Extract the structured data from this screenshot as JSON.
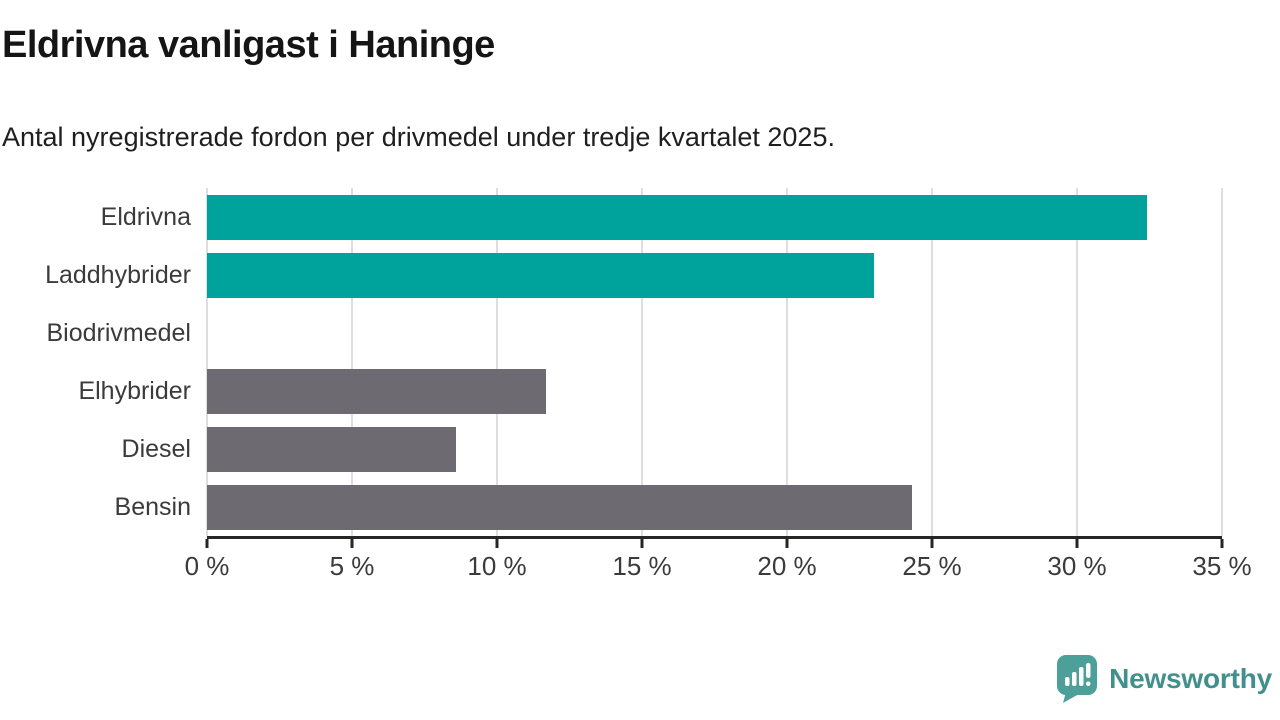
{
  "header": {
    "title": "Eldrivna vanligast i Haninge",
    "subtitle": "Antal nyregistrerade fordon per drivmedel under tredje kvartalet 2025."
  },
  "chart_data": {
    "type": "bar",
    "orientation": "horizontal",
    "title": "Eldrivna vanligast i Haninge",
    "subtitle": "Antal nyregistrerade fordon per drivmedel under tredje kvartalet 2025.",
    "categories": [
      "Eldrivna",
      "Laddhybrider",
      "Biodrivmedel",
      "Elhybrider",
      "Diesel",
      "Bensin"
    ],
    "values": [
      32.4,
      23.0,
      0,
      11.7,
      8.6,
      24.3
    ],
    "unit": "%",
    "bar_colors": [
      "#00a39c",
      "#00a39c",
      "#6d6a72",
      "#6d6a72",
      "#6d6a72",
      "#6d6a72"
    ],
    "xlabel": "",
    "ylabel": "",
    "xlim": [
      0,
      35
    ],
    "x_ticks": [
      0,
      5,
      10,
      15,
      20,
      25,
      30,
      35
    ],
    "x_tick_labels": [
      "0 %",
      "5 %",
      "10 %",
      "15 %",
      "20 %",
      "25 %",
      "30 %",
      "35 %"
    ],
    "grid": "vertical",
    "legend": "none"
  },
  "colors": {
    "highlight_teal": "#00a39c",
    "neutral_gray": "#6d6a72",
    "gridline": "#dedede",
    "axis": "#262626",
    "text_dark": "#151515",
    "text_label": "#3b3b3b"
  },
  "branding": {
    "logo_text": "Newsworthy",
    "logo_icon_color": "#4da09a",
    "logo_text_color": "#41908c"
  }
}
